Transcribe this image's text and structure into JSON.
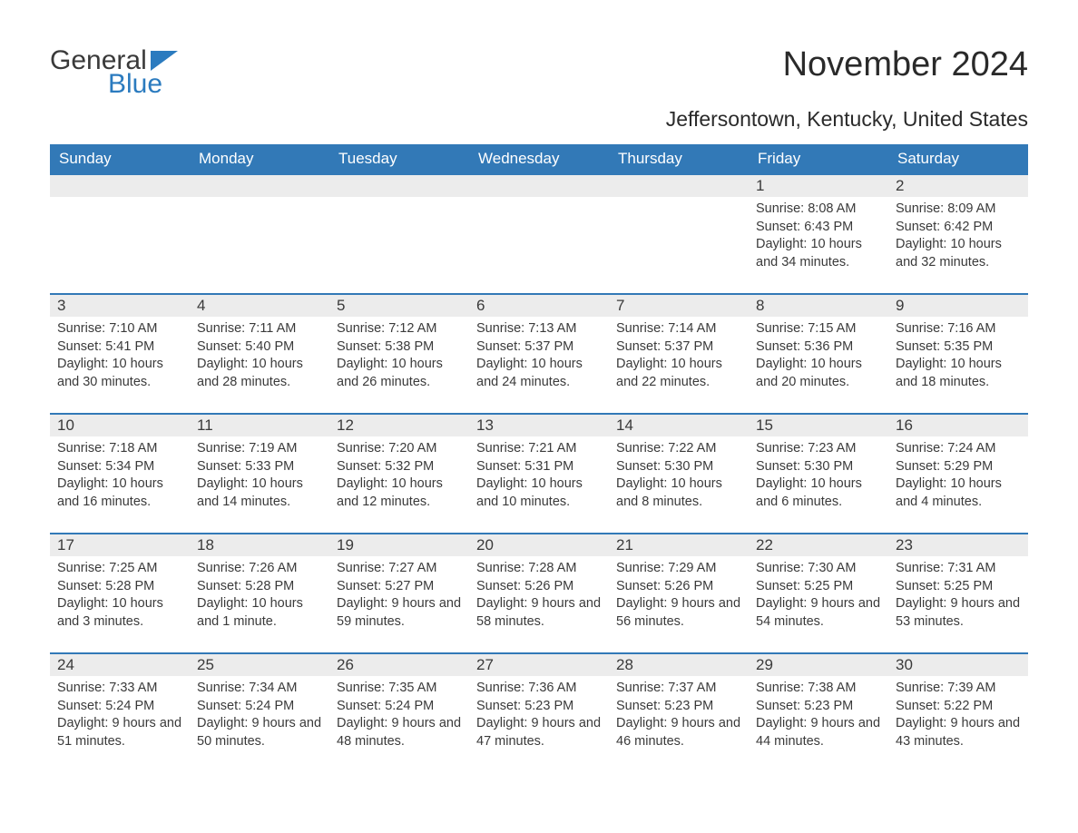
{
  "logo": {
    "text1": "General",
    "text2": "Blue",
    "icon_color": "#2b7bbf"
  },
  "title": "November 2024",
  "subtitle": "Jeffersontown, Kentucky, United States",
  "colors": {
    "header_bg": "#3279b7",
    "header_text": "#ffffff",
    "daynum_bg": "#ececec",
    "row_border": "#3279b7",
    "text": "#3a3a3a"
  },
  "day_names": [
    "Sunday",
    "Monday",
    "Tuesday",
    "Wednesday",
    "Thursday",
    "Friday",
    "Saturday"
  ],
  "weeks": [
    [
      null,
      null,
      null,
      null,
      null,
      {
        "n": "1",
        "sr": "Sunrise: 8:08 AM",
        "ss": "Sunset: 6:43 PM",
        "dl": "Daylight: 10 hours and 34 minutes."
      },
      {
        "n": "2",
        "sr": "Sunrise: 8:09 AM",
        "ss": "Sunset: 6:42 PM",
        "dl": "Daylight: 10 hours and 32 minutes."
      }
    ],
    [
      {
        "n": "3",
        "sr": "Sunrise: 7:10 AM",
        "ss": "Sunset: 5:41 PM",
        "dl": "Daylight: 10 hours and 30 minutes."
      },
      {
        "n": "4",
        "sr": "Sunrise: 7:11 AM",
        "ss": "Sunset: 5:40 PM",
        "dl": "Daylight: 10 hours and 28 minutes."
      },
      {
        "n": "5",
        "sr": "Sunrise: 7:12 AM",
        "ss": "Sunset: 5:38 PM",
        "dl": "Daylight: 10 hours and 26 minutes."
      },
      {
        "n": "6",
        "sr": "Sunrise: 7:13 AM",
        "ss": "Sunset: 5:37 PM",
        "dl": "Daylight: 10 hours and 24 minutes."
      },
      {
        "n": "7",
        "sr": "Sunrise: 7:14 AM",
        "ss": "Sunset: 5:37 PM",
        "dl": "Daylight: 10 hours and 22 minutes."
      },
      {
        "n": "8",
        "sr": "Sunrise: 7:15 AM",
        "ss": "Sunset: 5:36 PM",
        "dl": "Daylight: 10 hours and 20 minutes."
      },
      {
        "n": "9",
        "sr": "Sunrise: 7:16 AM",
        "ss": "Sunset: 5:35 PM",
        "dl": "Daylight: 10 hours and 18 minutes."
      }
    ],
    [
      {
        "n": "10",
        "sr": "Sunrise: 7:18 AM",
        "ss": "Sunset: 5:34 PM",
        "dl": "Daylight: 10 hours and 16 minutes."
      },
      {
        "n": "11",
        "sr": "Sunrise: 7:19 AM",
        "ss": "Sunset: 5:33 PM",
        "dl": "Daylight: 10 hours and 14 minutes."
      },
      {
        "n": "12",
        "sr": "Sunrise: 7:20 AM",
        "ss": "Sunset: 5:32 PM",
        "dl": "Daylight: 10 hours and 12 minutes."
      },
      {
        "n": "13",
        "sr": "Sunrise: 7:21 AM",
        "ss": "Sunset: 5:31 PM",
        "dl": "Daylight: 10 hours and 10 minutes."
      },
      {
        "n": "14",
        "sr": "Sunrise: 7:22 AM",
        "ss": "Sunset: 5:30 PM",
        "dl": "Daylight: 10 hours and 8 minutes."
      },
      {
        "n": "15",
        "sr": "Sunrise: 7:23 AM",
        "ss": "Sunset: 5:30 PM",
        "dl": "Daylight: 10 hours and 6 minutes."
      },
      {
        "n": "16",
        "sr": "Sunrise: 7:24 AM",
        "ss": "Sunset: 5:29 PM",
        "dl": "Daylight: 10 hours and 4 minutes."
      }
    ],
    [
      {
        "n": "17",
        "sr": "Sunrise: 7:25 AM",
        "ss": "Sunset: 5:28 PM",
        "dl": "Daylight: 10 hours and 3 minutes."
      },
      {
        "n": "18",
        "sr": "Sunrise: 7:26 AM",
        "ss": "Sunset: 5:28 PM",
        "dl": "Daylight: 10 hours and 1 minute."
      },
      {
        "n": "19",
        "sr": "Sunrise: 7:27 AM",
        "ss": "Sunset: 5:27 PM",
        "dl": "Daylight: 9 hours and 59 minutes."
      },
      {
        "n": "20",
        "sr": "Sunrise: 7:28 AM",
        "ss": "Sunset: 5:26 PM",
        "dl": "Daylight: 9 hours and 58 minutes."
      },
      {
        "n": "21",
        "sr": "Sunrise: 7:29 AM",
        "ss": "Sunset: 5:26 PM",
        "dl": "Daylight: 9 hours and 56 minutes."
      },
      {
        "n": "22",
        "sr": "Sunrise: 7:30 AM",
        "ss": "Sunset: 5:25 PM",
        "dl": "Daylight: 9 hours and 54 minutes."
      },
      {
        "n": "23",
        "sr": "Sunrise: 7:31 AM",
        "ss": "Sunset: 5:25 PM",
        "dl": "Daylight: 9 hours and 53 minutes."
      }
    ],
    [
      {
        "n": "24",
        "sr": "Sunrise: 7:33 AM",
        "ss": "Sunset: 5:24 PM",
        "dl": "Daylight: 9 hours and 51 minutes."
      },
      {
        "n": "25",
        "sr": "Sunrise: 7:34 AM",
        "ss": "Sunset: 5:24 PM",
        "dl": "Daylight: 9 hours and 50 minutes."
      },
      {
        "n": "26",
        "sr": "Sunrise: 7:35 AM",
        "ss": "Sunset: 5:24 PM",
        "dl": "Daylight: 9 hours and 48 minutes."
      },
      {
        "n": "27",
        "sr": "Sunrise: 7:36 AM",
        "ss": "Sunset: 5:23 PM",
        "dl": "Daylight: 9 hours and 47 minutes."
      },
      {
        "n": "28",
        "sr": "Sunrise: 7:37 AM",
        "ss": "Sunset: 5:23 PM",
        "dl": "Daylight: 9 hours and 46 minutes."
      },
      {
        "n": "29",
        "sr": "Sunrise: 7:38 AM",
        "ss": "Sunset: 5:23 PM",
        "dl": "Daylight: 9 hours and 44 minutes."
      },
      {
        "n": "30",
        "sr": "Sunrise: 7:39 AM",
        "ss": "Sunset: 5:22 PM",
        "dl": "Daylight: 9 hours and 43 minutes."
      }
    ]
  ]
}
